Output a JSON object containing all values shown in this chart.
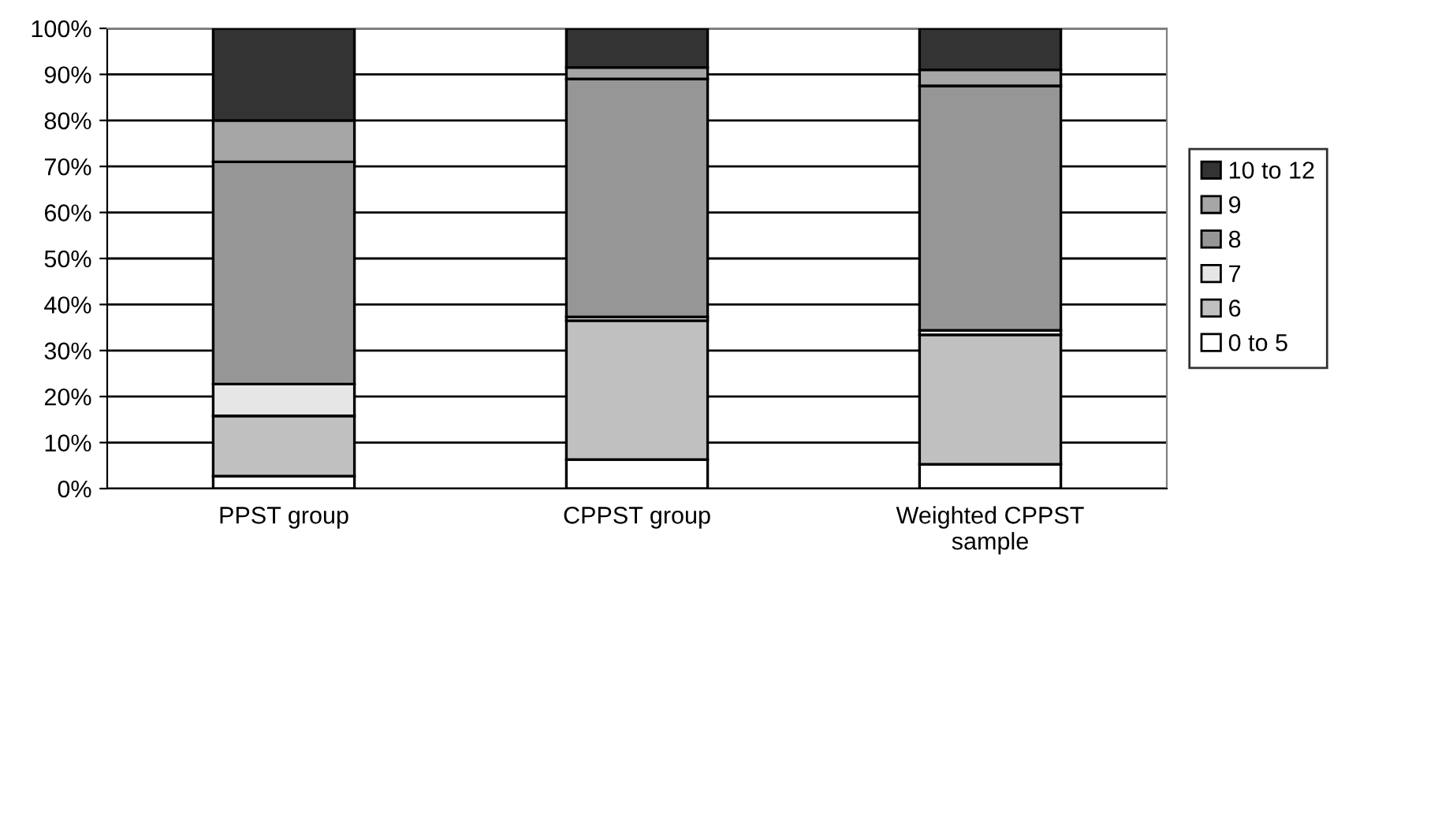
{
  "chart_data": {
    "type": "bar",
    "stacked": true,
    "categories": [
      "PPST group",
      "CPPST group",
      "Weighted CPPST\nsample"
    ],
    "series": [
      {
        "name": "0 to 5",
        "color": "#ffffff",
        "values": [
          2.7,
          6.3,
          5.3
        ]
      },
      {
        "name": "6",
        "color": "#c0c0c0",
        "values": [
          13.1,
          30.2,
          28.1
        ]
      },
      {
        "name": "7",
        "color": "#e6e6e6",
        "values": [
          6.9,
          0.8,
          1.0
        ]
      },
      {
        "name": "8",
        "color": "#969696",
        "values": [
          48.3,
          51.7,
          53.1
        ]
      },
      {
        "name": "9",
        "color": "#a6a6a6",
        "values": [
          9.0,
          2.5,
          3.5
        ]
      },
      {
        "name": "10 to 12",
        "color": "#333333",
        "values": [
          20.0,
          8.5,
          9.0
        ]
      }
    ],
    "ylim": [
      0,
      100
    ],
    "yticks": [
      {
        "value": 0,
        "label": "0%"
      },
      {
        "value": 10,
        "label": "10%"
      },
      {
        "value": 20,
        "label": "20%"
      },
      {
        "value": 30,
        "label": "30%"
      },
      {
        "value": 40,
        "label": "40%"
      },
      {
        "value": 50,
        "label": "50%"
      },
      {
        "value": 60,
        "label": "60%"
      },
      {
        "value": 70,
        "label": "70%"
      },
      {
        "value": 80,
        "label": "80%"
      },
      {
        "value": 90,
        "label": "90%"
      },
      {
        "value": 100,
        "label": "100%"
      }
    ],
    "grid": "y",
    "legend": "right"
  }
}
